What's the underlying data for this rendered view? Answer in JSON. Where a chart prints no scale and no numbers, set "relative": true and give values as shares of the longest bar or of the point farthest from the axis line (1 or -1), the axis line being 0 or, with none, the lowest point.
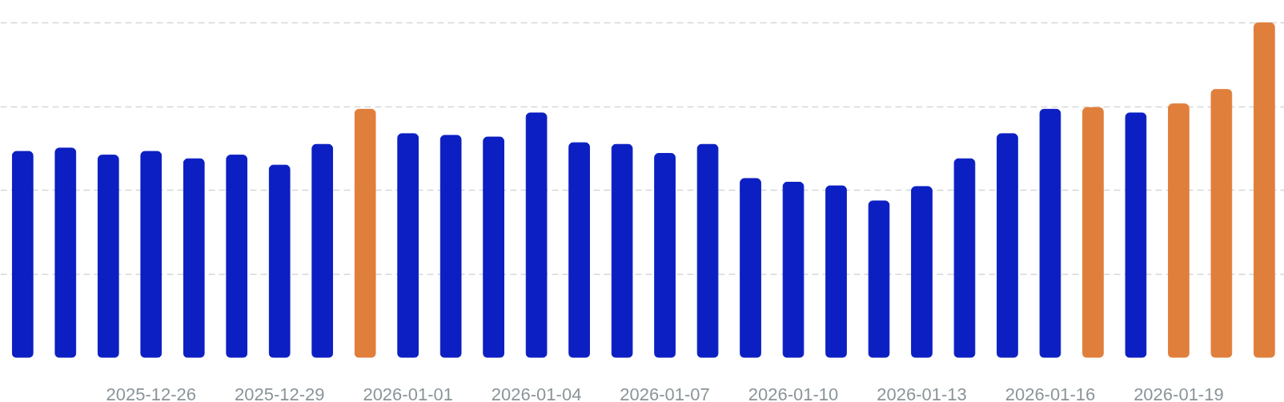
{
  "chart_data": {
    "type": "bar",
    "relative": true,
    "grid": "y",
    "categories": [
      null,
      null,
      null,
      "2025-12-26",
      null,
      null,
      "2025-12-29",
      null,
      null,
      "2026-01-01",
      null,
      null,
      "2026-01-04",
      null,
      null,
      "2026-01-07",
      null,
      null,
      "2026-01-10",
      null,
      null,
      "2026-01-13",
      null,
      null,
      "2026-01-16",
      null,
      null,
      "2026-01-19",
      null,
      null
    ],
    "values": [
      0.616,
      0.626,
      0.605,
      0.616,
      0.594,
      0.605,
      0.575,
      0.637,
      0.742,
      0.669,
      0.664,
      0.659,
      0.731,
      0.642,
      0.637,
      0.61,
      0.637,
      0.535,
      0.524,
      0.513,
      0.468,
      0.511,
      0.594,
      0.669,
      0.742,
      0.747,
      0.731,
      0.758,
      0.801,
      1.0
    ],
    "colors": [
      "#0c1fc2",
      "#0c1fc2",
      "#0c1fc2",
      "#0c1fc2",
      "#0c1fc2",
      "#0c1fc2",
      "#0c1fc2",
      "#0c1fc2",
      "#e07f3c",
      "#0c1fc2",
      "#0c1fc2",
      "#0c1fc2",
      "#0c1fc2",
      "#0c1fc2",
      "#0c1fc2",
      "#0c1fc2",
      "#0c1fc2",
      "#0c1fc2",
      "#0c1fc2",
      "#0c1fc2",
      "#0c1fc2",
      "#0c1fc2",
      "#0c1fc2",
      "#0c1fc2",
      "#0c1fc2",
      "#e07f3c",
      "#0c1fc2",
      "#e07f3c",
      "#e07f3c",
      "#e07f3c"
    ]
  }
}
